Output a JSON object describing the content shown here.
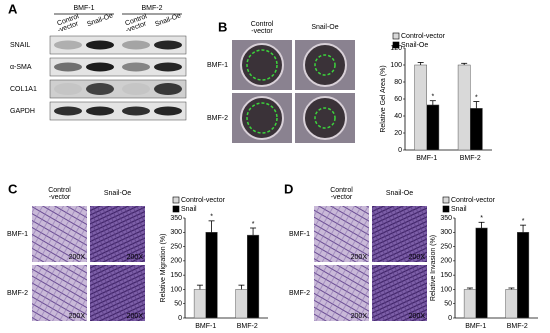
{
  "panel_labels": [
    "A",
    "B",
    "C",
    "D"
  ],
  "blot": {
    "groups": [
      "BMF-1",
      "BMF-2"
    ],
    "lanes": [
      [
        "Control",
        "-vector"
      ],
      [
        "Snail-Oe"
      ]
    ],
    "rows": [
      "SNAIL",
      "α-SMA",
      "COL1A1",
      "GAPDH"
    ]
  },
  "panel_b": {
    "columns": [
      [
        "Control",
        "-vector"
      ],
      [
        "Snail-Oe"
      ]
    ],
    "rows": [
      "BMF-1",
      "BMF-2"
    ]
  },
  "panel_c": {
    "columns": [
      [
        "Control",
        "-vector"
      ],
      [
        "Snail-Oe"
      ]
    ],
    "rows": [
      "BMF-1",
      "BMF-2"
    ],
    "magnification": "200X"
  },
  "panel_d": {
    "columns": [
      [
        "Control",
        "-vector"
      ],
      [
        "Snail-Oe"
      ]
    ],
    "rows": [
      "BMF-1",
      "BMF-2"
    ],
    "magnification": "200X"
  },
  "chart_data": [
    {
      "type": "bar",
      "y_label": "Relative Gel Area (%)",
      "categories": [
        "BMF-1",
        "BMF-2"
      ],
      "series": [
        {
          "name": "Control-vector",
          "color": "#d9d9d9",
          "values": [
            100,
            100
          ],
          "errors": [
            3,
            2
          ]
        },
        {
          "name": "Snail-Oe",
          "color": "#000000",
          "values": [
            53,
            49
          ],
          "errors": [
            5,
            8
          ],
          "markers": [
            "*",
            "*"
          ]
        }
      ],
      "ylim": [
        0,
        120
      ],
      "yticks": [
        0,
        20,
        40,
        60,
        80,
        100,
        120
      ]
    },
    {
      "type": "bar",
      "y_label": "Relative Migration (%)",
      "categories": [
        "BMF-1",
        "BMF-2"
      ],
      "series": [
        {
          "name": "Control-vector",
          "color": "#d9d9d9",
          "values": [
            100,
            100
          ],
          "errors": [
            15,
            15
          ]
        },
        {
          "name": "Snail",
          "color": "#000000",
          "values": [
            300,
            290
          ],
          "errors": [
            40,
            25
          ],
          "markers": [
            "*",
            "*"
          ]
        }
      ],
      "ylim": [
        0,
        350
      ],
      "yticks": [
        0,
        50,
        100,
        150,
        200,
        250,
        300,
        350
      ]
    },
    {
      "type": "bar",
      "y_label": "Relative Invasion (%)",
      "categories": [
        "BMF-1",
        "BMF-2"
      ],
      "series": [
        {
          "name": "Control-vector",
          "color": "#d9d9d9",
          "values": [
            100,
            100
          ],
          "errors": [
            5,
            5
          ]
        },
        {
          "name": "Snail",
          "color": "#000000",
          "values": [
            315,
            300
          ],
          "errors": [
            20,
            25
          ],
          "markers": [
            "*",
            "*"
          ]
        }
      ],
      "ylim": [
        0,
        350
      ],
      "yticks": [
        0,
        50,
        100,
        150,
        200,
        250,
        300,
        350
      ]
    }
  ]
}
